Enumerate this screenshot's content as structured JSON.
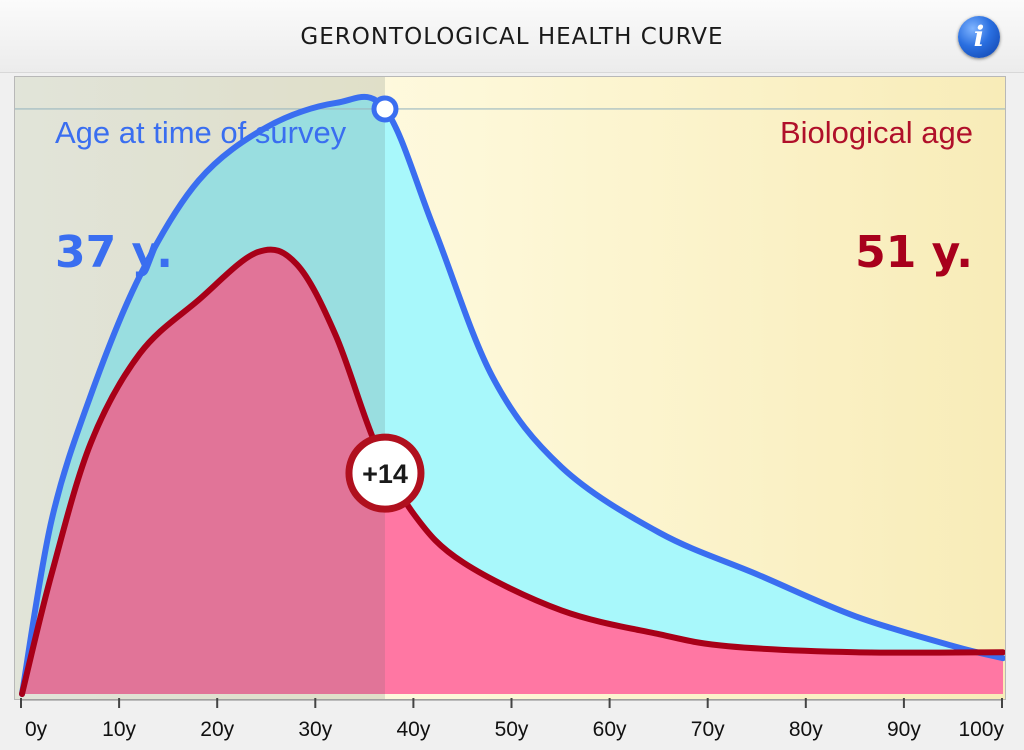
{
  "header": {
    "title": "GERONTOLOGICAL HEALTH CURVE",
    "info_icon": "info-icon"
  },
  "left_panel": {
    "label": "Age at time of survey",
    "value": "37 y.",
    "color": "#3a6ef0"
  },
  "right_panel": {
    "label": "Biological age",
    "value": "51 y.",
    "color": "#a8001c"
  },
  "badge": {
    "text": "+14"
  },
  "chart_data": {
    "type": "area",
    "title": "GERONTOLOGICAL HEALTH CURVE",
    "xlim": [
      0,
      100
    ],
    "ylim": [
      0,
      1
    ],
    "x_ticks": [
      "0y",
      "10y",
      "20y",
      "30y",
      "40y",
      "50y",
      "60y",
      "70y",
      "80y",
      "90y",
      "100y"
    ],
    "survey_age": 37,
    "biological_age": 51,
    "difference": 14,
    "series": [
      {
        "name": "Age at time of survey",
        "color": "#3a6ef0",
        "fill": "#a8f8fb",
        "points": [
          [
            0,
            0
          ],
          [
            3,
            0.29
          ],
          [
            7,
            0.5
          ],
          [
            12,
            0.7
          ],
          [
            18,
            0.86
          ],
          [
            25,
            0.95
          ],
          [
            32,
            0.99
          ],
          [
            37,
            0.98
          ],
          [
            42,
            0.78
          ],
          [
            48,
            0.53
          ],
          [
            55,
            0.38
          ],
          [
            65,
            0.27
          ],
          [
            75,
            0.2
          ],
          [
            85,
            0.13
          ],
          [
            95,
            0.08
          ],
          [
            100,
            0.06
          ]
        ]
      },
      {
        "name": "Biological age",
        "color": "#a80018",
        "fill": "#ff77a3",
        "points": [
          [
            0,
            0
          ],
          [
            3,
            0.2
          ],
          [
            7,
            0.42
          ],
          [
            12,
            0.57
          ],
          [
            18,
            0.66
          ],
          [
            24,
            0.74
          ],
          [
            28,
            0.72
          ],
          [
            32,
            0.6
          ],
          [
            36,
            0.42
          ],
          [
            40,
            0.3
          ],
          [
            45,
            0.22
          ],
          [
            55,
            0.14
          ],
          [
            65,
            0.1
          ],
          [
            72,
            0.08
          ],
          [
            85,
            0.07
          ],
          [
            100,
            0.07
          ]
        ]
      }
    ],
    "reference_line_y": 0.98,
    "grid": false
  }
}
